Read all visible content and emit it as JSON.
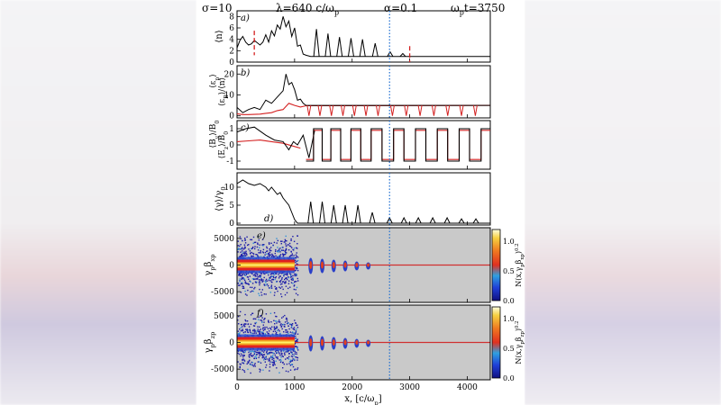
{
  "header": {
    "sigma": "σ=10",
    "lambda": "λ=640 c/ω",
    "lambda_sub": "p",
    "alpha": "α=0.1",
    "time_pre": "ω",
    "time_sub": "p",
    "time_post": "t=3750"
  },
  "colors": {
    "black_line": "#000000",
    "red_line": "#d42020",
    "blue_dotted": "#1f6fd1",
    "panel_bg_gray": "#c9c9c9"
  },
  "chart_data": [
    {
      "panel": "a)",
      "type": "line",
      "ylabel": "⟨n⟩",
      "xlim": [
        0,
        4400
      ],
      "ylim": [
        0,
        9
      ],
      "yticks": [
        "0",
        "2",
        "4",
        "6",
        "8"
      ],
      "series": [
        {
          "name": "density",
          "color": "#000000",
          "x": [
            0,
            50,
            100,
            150,
            200,
            250,
            300,
            350,
            400,
            450,
            500,
            550,
            600,
            650,
            700,
            750,
            800,
            850,
            900,
            950,
            1000,
            1050,
            1100,
            1150,
            1200,
            1280,
            1320,
            1400,
            1500,
            1600,
            1700,
            1800,
            2000,
            2200,
            2400,
            2600,
            2800,
            3000,
            3200,
            3400,
            3600,
            3800,
            4000,
            4200,
            4400
          ],
          "y": [
            2.5,
            3.8,
            4.5,
            3.5,
            3.0,
            3.2,
            3.8,
            3.4,
            3.0,
            3.5,
            4.8,
            3.5,
            5.5,
            4.6,
            6.5,
            5.8,
            8.0,
            6.2,
            7.2,
            4.5,
            6.0,
            2.8,
            3.0,
            1.4,
            1.2,
            1.0,
            1.0,
            1.0,
            1.0,
            1.0,
            1.0,
            1.0,
            1.0,
            1.0,
            1.0,
            1.0,
            1.0,
            1.0,
            1.0,
            1.0,
            1.0,
            1.0,
            1.0,
            1.0,
            1.0
          ],
          "spikes": [
            {
              "x": 1380,
              "y": 5.8
            },
            {
              "x": 1580,
              "y": 5.0
            },
            {
              "x": 1780,
              "y": 4.4
            },
            {
              "x": 1980,
              "y": 4.2
            },
            {
              "x": 2180,
              "y": 4.0
            },
            {
              "x": 2400,
              "y": 3.3
            },
            {
              "x": 2660,
              "y": 1.8
            },
            {
              "x": 2880,
              "y": 1.5
            }
          ]
        },
        {
          "name": "marker-left",
          "color": "#d42020",
          "style": "dashed",
          "x_value": 300
        },
        {
          "name": "marker-right",
          "color": "#d42020",
          "style": "dashed",
          "x_value": 3000
        },
        {
          "name": "marker-blue",
          "color": "#1f6fd1",
          "style": "dotted",
          "x_value": 2650
        }
      ]
    },
    {
      "panel": "b)",
      "type": "line",
      "ylabel_black": "⟨ε",
      "ylabel_black_sub": "p",
      "ylabel_black_post": "⟩",
      "ylabel_red": "⟨ε",
      "ylabel_red_sub": "B",
      "ylabel_red_post": "⟩/⟨n⟩",
      "xlim": [
        0,
        4400
      ],
      "ylim": [
        -1,
        24
      ],
      "yticks": [
        "0",
        "10",
        "20"
      ],
      "series": [
        {
          "name": "particle-energy",
          "color": "#000000",
          "x": [
            0,
            100,
            200,
            300,
            400,
            500,
            600,
            700,
            800,
            850,
            900,
            950,
            1000,
            1050,
            1100,
            1150,
            1200,
            4400
          ],
          "y": [
            4.0,
            1.5,
            3.0,
            4.0,
            3.0,
            7.5,
            6.0,
            9.0,
            12.0,
            20.0,
            15.0,
            16.0,
            12.5,
            7.5,
            8.0,
            6.0,
            5.0,
            5.0
          ]
        },
        {
          "name": "field-energy",
          "color": "#d42020",
          "x": [
            0,
            100,
            200,
            400,
            500,
            600,
            700,
            800,
            900,
            1000,
            1100,
            1200,
            4400
          ],
          "y": [
            1.0,
            0.6,
            0.6,
            0.8,
            1.2,
            1.5,
            2.5,
            3.0,
            6.0,
            5.0,
            4.2,
            4.8,
            5.0
          ]
        }
      ],
      "dips": [
        1250,
        1440,
        1640,
        1840,
        2040,
        2240,
        2450,
        2700,
        2940,
        3180,
        3420,
        3660,
        3900,
        4140
      ]
    },
    {
      "panel": "c)",
      "type": "line",
      "ylabel_black": "⟨B",
      "ylabel_black_sub": "y",
      "ylabel_black_post": "⟩/B",
      "ylabel_black_sub2": "0",
      "ylabel_red": "⟨E",
      "ylabel_red_sub": "z",
      "ylabel_red_post": "⟩/B",
      "ylabel_red_sub2": "0",
      "xlim": [
        0,
        4400
      ],
      "ylim": [
        -1.5,
        1.5
      ],
      "yticks": [
        "-1",
        "0",
        "1"
      ],
      "series": [
        {
          "name": "By",
          "color": "#000000",
          "x": [
            0,
            150,
            300,
            500,
            650,
            800,
            900,
            980,
            1050,
            1150,
            1250,
            1350,
            1450,
            1550,
            1650,
            1750,
            1850,
            1950,
            2050,
            2150,
            2250,
            2350,
            2450,
            2550,
            2650,
            2700,
            2850,
            3000,
            3100,
            3250,
            3400,
            3500,
            3650,
            3800,
            3900,
            4000,
            4100,
            4250,
            4400
          ],
          "y": [
            0.8,
            1.0,
            1.1,
            0.6,
            0.3,
            0.2,
            -0.3,
            0.2,
            0.0,
            0.6,
            -0.8,
            0.9,
            -0.5,
            0.9,
            -0.9,
            1.0,
            -1.0,
            1.0,
            -1.0,
            1.0,
            -1.0,
            1.0,
            -1.0,
            1.0,
            -1.0,
            1.0,
            -1.0,
            1.0,
            -1.0,
            1.0,
            -1.0,
            1.0,
            -1.0,
            1.0,
            -1.0,
            1.0,
            -1.0,
            1.0,
            -1.0
          ]
        },
        {
          "name": "Ez",
          "color": "#d42020",
          "x": [
            0,
            200,
            400,
            600,
            800,
            1000,
            1100,
            1250,
            1350,
            1450,
            1550,
            1650,
            1750,
            1850,
            1950,
            2050,
            2150,
            2250,
            2350,
            2450,
            2550,
            2650,
            4400
          ],
          "y": [
            0.2,
            0.25,
            0.3,
            0.2,
            0.1,
            -0.1,
            -0.2,
            -0.5,
            0.6,
            -0.6,
            0.7,
            -0.8,
            0.8,
            -0.9,
            0.9,
            -0.9,
            0.9,
            -0.9,
            0.9,
            -0.9,
            0.9,
            -0.9,
            -0.9
          ]
        }
      ]
    },
    {
      "panel": "d)",
      "type": "line",
      "ylabel": "⟨γ⟩/γ",
      "ylabel_sub": "0",
      "xlim": [
        0,
        4400
      ],
      "ylim": [
        -0.5,
        14
      ],
      "yticks": [
        "0",
        "5",
        "10"
      ],
      "series": [
        {
          "name": "mean-lorentz",
          "color": "#000000",
          "x": [
            0,
            100,
            200,
            300,
            400,
            500,
            550,
            600,
            700,
            750,
            800,
            850,
            900,
            950,
            1000,
            1050,
            4400
          ],
          "y": [
            11.0,
            12.0,
            11.0,
            10.5,
            11.0,
            10.0,
            9.0,
            10.0,
            8.0,
            8.5,
            7.0,
            6.0,
            5.0,
            3.0,
            1.0,
            0.0,
            0.0
          ],
          "peaks": [
            {
              "x": 1280,
              "y": 6.0
            },
            {
              "x": 1480,
              "y": 6.0
            },
            {
              "x": 1680,
              "y": 5.0
            },
            {
              "x": 1880,
              "y": 5.0
            },
            {
              "x": 2100,
              "y": 5.0
            },
            {
              "x": 2350,
              "y": 3.0
            },
            {
              "x": 2650,
              "y": 1.5
            },
            {
              "x": 2900,
              "y": 1.5
            },
            {
              "x": 3150,
              "y": 1.5
            },
            {
              "x": 3400,
              "y": 1.5
            },
            {
              "x": 3650,
              "y": 1.5
            },
            {
              "x": 3900,
              "y": 1.2
            },
            {
              "x": 4150,
              "y": 1.2
            }
          ]
        }
      ]
    },
    {
      "panel": "e)",
      "type": "heatmap",
      "ylabel": "γ",
      "ylabel_sub": "p",
      "ylabel_mid": "β",
      "ylabel_sub2": "xp",
      "xlim": [
        0,
        4400
      ],
      "ylim": [
        -7000,
        7000
      ],
      "yticks": [
        "-5000",
        "0",
        "5000"
      ],
      "colorbar_ticks": [
        "0.0",
        "0.5",
        "1.0"
      ],
      "colorbar_label": "N(x,γ",
      "colorbar_label_sub": "p",
      "colorbar_label_mid": "β",
      "colorbar_label_sub2": "xp",
      "colorbar_label_post": ")",
      "colorbar_label_sup": "0.2",
      "spread_cutoff_x": 1000,
      "spread_amplitude": 6000,
      "blobs": [
        1280,
        1480,
        1680,
        1880,
        2080,
        2280
      ]
    },
    {
      "panel": "f)",
      "type": "heatmap",
      "ylabel": "γ",
      "ylabel_sub": "p",
      "ylabel_mid": "β",
      "ylabel_sub2": "zp",
      "xlim": [
        0,
        4400
      ],
      "ylim": [
        -7000,
        7000
      ],
      "yticks": [
        "-5000",
        "0",
        "5000"
      ],
      "xticks": [
        "0",
        "1000",
        "2000",
        "3000",
        "4000"
      ],
      "xlabel": "x, [c/ω",
      "xlabel_sub": "p",
      "xlabel_post": "]",
      "colorbar_ticks": [
        "0.0",
        "0.5",
        "1.0"
      ],
      "colorbar_label": "N(x,γ",
      "colorbar_label_sub": "p",
      "colorbar_label_mid": "β",
      "colorbar_label_sub2": "zp",
      "colorbar_label_post": ")",
      "colorbar_label_sup": "0.2",
      "spread_cutoff_x": 1000,
      "spread_amplitude": 6000,
      "blobs": [
        1280,
        1480,
        1680,
        1880,
        2080,
        2280
      ]
    }
  ]
}
